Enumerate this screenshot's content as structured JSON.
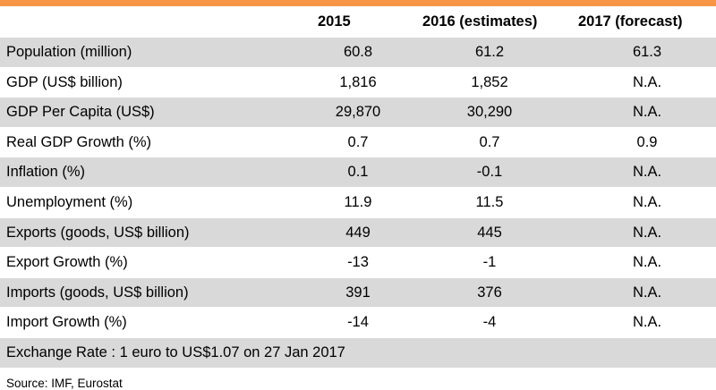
{
  "table": {
    "headers": [
      "",
      "2015",
      "2016 (estimates)",
      "2017 (forecast)"
    ],
    "rows": [
      {
        "label": "Population (million)",
        "v2015": "60.8",
        "v2016": "61.2",
        "v2017": "61.3"
      },
      {
        "label": "GDP (US$ billion)",
        "v2015": "1,816",
        "v2016": "1,852",
        "v2017": "N.A."
      },
      {
        "label": "GDP Per Capita (US$)",
        "v2015": "29,870",
        "v2016": "30,290",
        "v2017": "N.A."
      },
      {
        "label": "Real GDP Growth (%)",
        "v2015": "0.7",
        "v2016": "0.7",
        "v2017": "0.9"
      },
      {
        "label": "Inflation (%)",
        "v2015": "0.1",
        "v2016": "-0.1",
        "v2017": "N.A."
      },
      {
        "label": "Unemployment (%)",
        "v2015": "11.9",
        "v2016": "11.5",
        "v2017": "N.A."
      },
      {
        "label": "Exports (goods, US$ billion)",
        "v2015": "449",
        "v2016": "445",
        "v2017": "N.A."
      },
      {
        "label": "Export Growth (%)",
        "v2015": "-13",
        "v2016": "-1",
        "v2017": "N.A."
      },
      {
        "label": "Imports (goods, US$ billion)",
        "v2015": "391",
        "v2016": "376",
        "v2017": "N.A."
      },
      {
        "label": "Import Growth (%)",
        "v2015": "-14",
        "v2016": "-4",
        "v2017": "N.A."
      }
    ],
    "note": "Exchange Rate : 1 euro to US$1.07 on 27 Jan 2017"
  },
  "source": "Source: IMF, Eurostat",
  "colors": {
    "accent": "#f79646",
    "row_shade": "#d9d9d9"
  }
}
